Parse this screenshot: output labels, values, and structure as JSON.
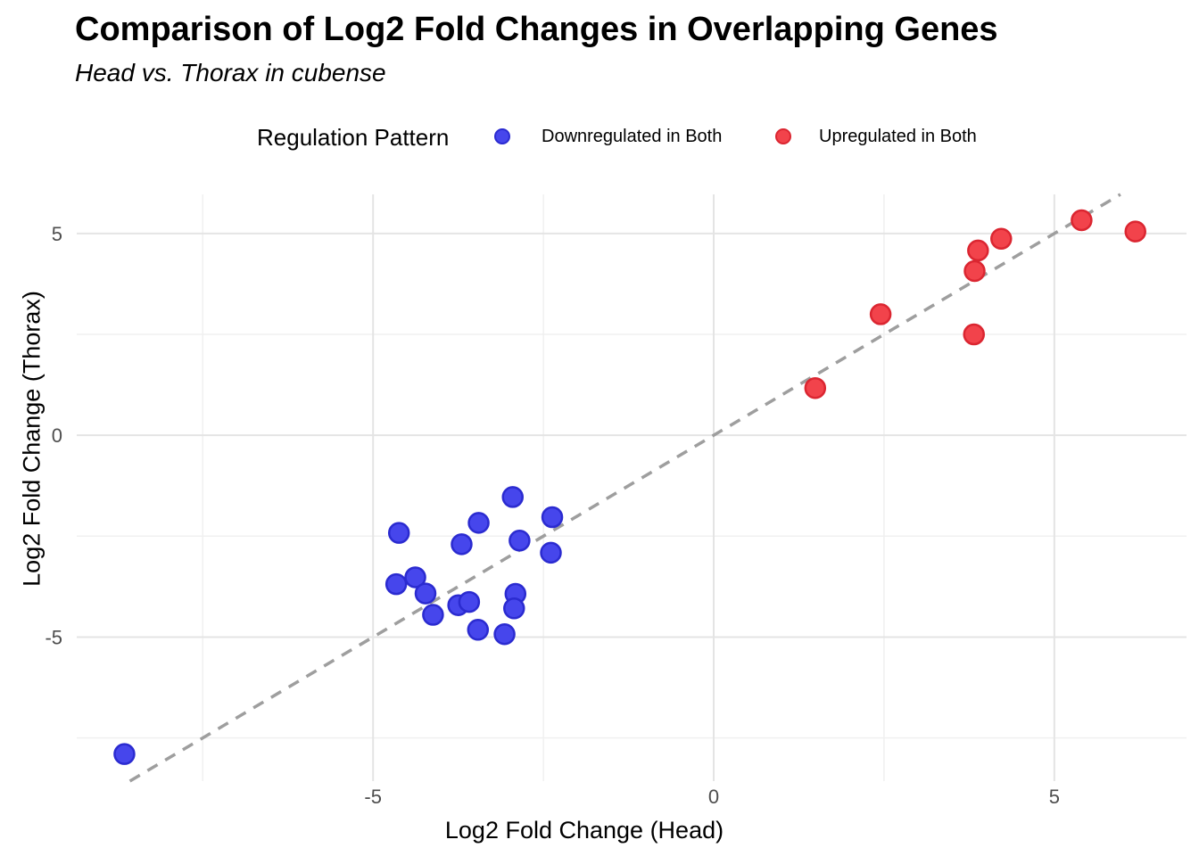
{
  "header": {
    "title": "Comparison of Log2 Fold Changes in Overlapping Genes",
    "subtitle": "Head vs. Thorax in cubense"
  },
  "legend": {
    "title": "Regulation Pattern",
    "items": [
      {
        "label": "Downregulated in Both",
        "fill": "#4646EC",
        "stroke": "#2B2BD0"
      },
      {
        "label": "Upregulated in Both",
        "fill": "#F2434B",
        "stroke": "#DB2631"
      }
    ]
  },
  "axes": {
    "x_title": "Log2 Fold Change (Head)",
    "y_title": "Log2 Fold Change (Thorax)",
    "x_tick_labels": [
      "-5",
      "0",
      "5"
    ],
    "y_tick_labels": [
      "5",
      "0",
      "-5"
    ]
  },
  "chart_data": {
    "type": "scatter",
    "title": "Comparison of Log2 Fold Changes in Overlapping Genes",
    "subtitle": "Head vs. Thorax in cubense",
    "xlabel": "Log2 Fold Change (Head)",
    "ylabel": "Log2 Fold Change (Thorax)",
    "legend_title": "Regulation Pattern",
    "legend_position": "top",
    "grid": true,
    "xlim": [
      -9.35,
      6.94
    ],
    "ylim": [
      -8.57,
      5.97
    ],
    "x_major_ticks": [
      -5,
      0,
      5
    ],
    "x_minor_ticks": [
      -7.5,
      -2.5,
      2.5
    ],
    "y_major_ticks": [
      5,
      0,
      -5
    ],
    "y_minor_ticks": [
      2.5,
      -2.5,
      -7.5
    ],
    "reference_line": {
      "kind": "identity y = x",
      "style": "dashed",
      "color": "#9e9e9e"
    },
    "series": [
      {
        "name": "Downregulated in Both",
        "marker_fill": "#4646EC",
        "marker_stroke": "#2B2BD0",
        "points": [
          [
            -8.65,
            -7.9
          ],
          [
            -4.62,
            -2.42
          ],
          [
            -4.66,
            -3.69
          ],
          [
            -4.38,
            -3.52
          ],
          [
            -4.23,
            -3.92
          ],
          [
            -4.12,
            -4.45
          ],
          [
            -3.75,
            -4.21
          ],
          [
            -3.59,
            -4.13
          ],
          [
            -3.7,
            -2.7
          ],
          [
            -3.45,
            -2.17
          ],
          [
            -3.46,
            -4.82
          ],
          [
            -3.07,
            -4.93
          ],
          [
            -2.95,
            -1.53
          ],
          [
            -2.91,
            -3.93
          ],
          [
            -2.93,
            -4.29
          ],
          [
            -2.85,
            -2.61
          ],
          [
            -2.37,
            -2.03
          ],
          [
            -2.39,
            -2.91
          ]
        ]
      },
      {
        "name": "Upregulated in Both",
        "marker_fill": "#F2434B",
        "marker_stroke": "#DB2631",
        "points": [
          [
            1.49,
            1.17
          ],
          [
            2.45,
            3.0
          ],
          [
            3.82,
            2.5
          ],
          [
            3.83,
            4.07
          ],
          [
            3.88,
            4.58
          ],
          [
            4.22,
            4.87
          ],
          [
            5.4,
            5.33
          ],
          [
            6.19,
            5.05
          ]
        ]
      }
    ]
  },
  "style_colors": {
    "grid_major": "#e4e4e4",
    "grid_minor": "#f0f0f0",
    "tick_label": "#4d4d4d",
    "reference": "#9e9e9e"
  }
}
